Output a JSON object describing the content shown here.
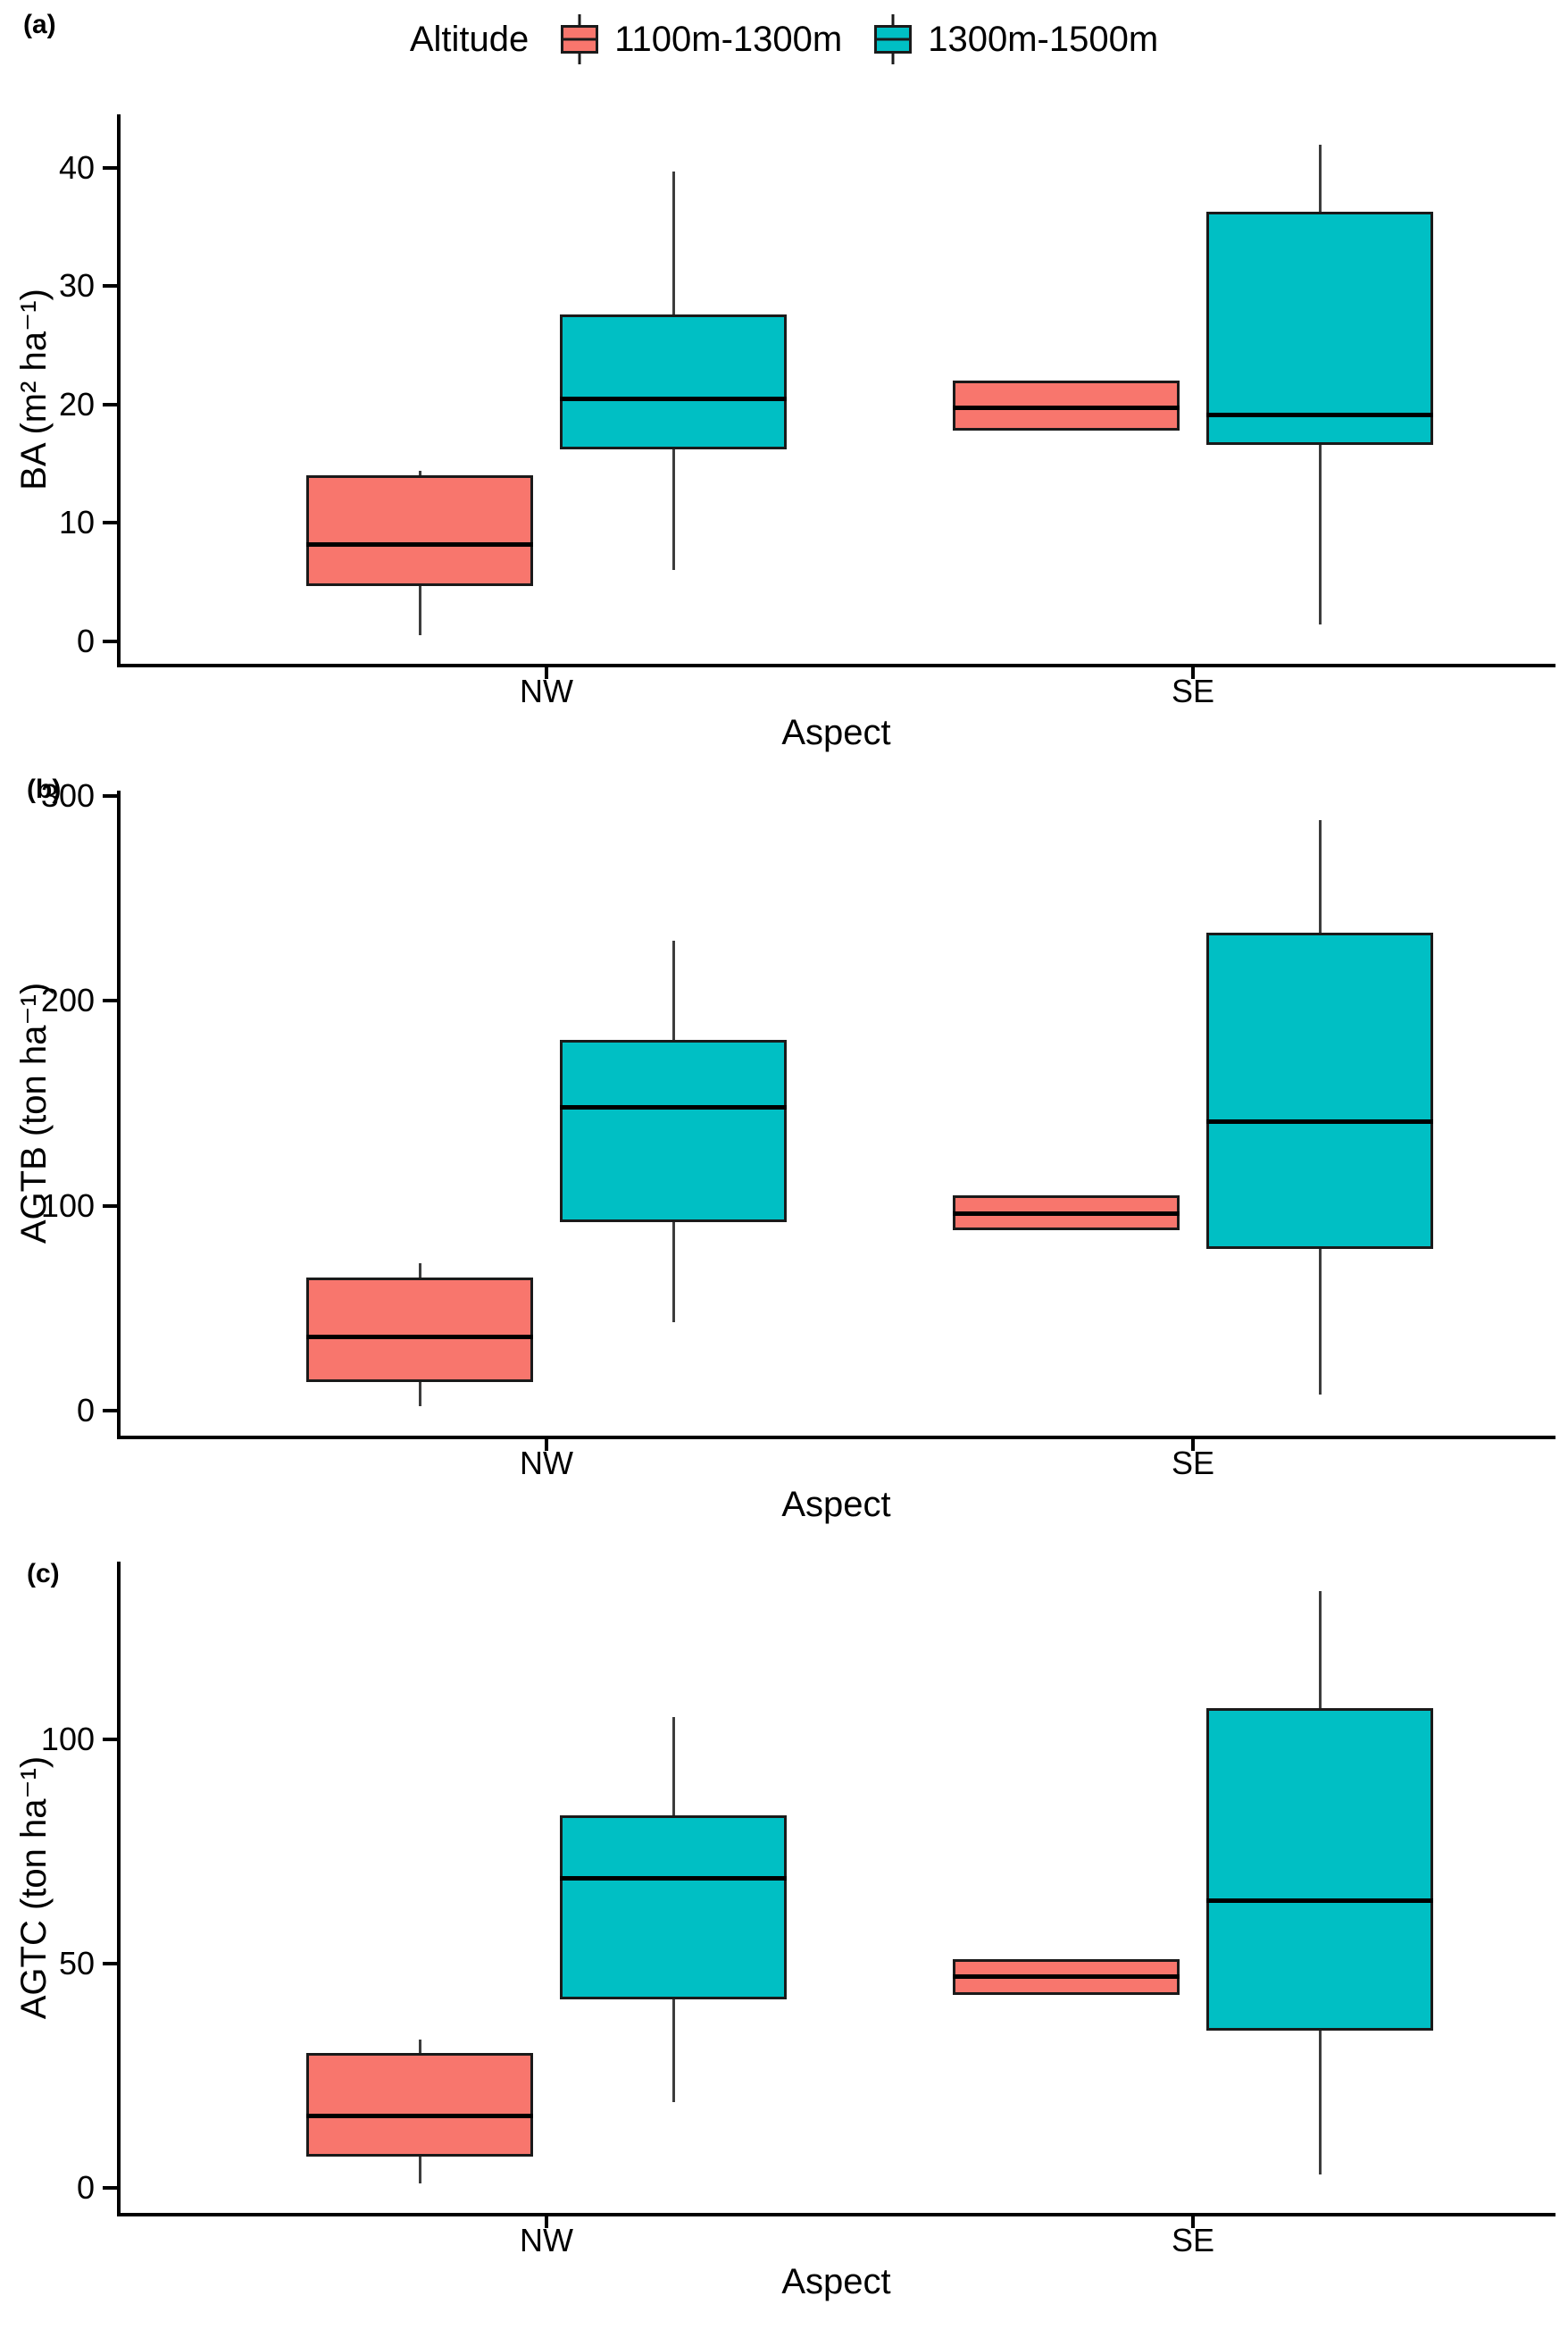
{
  "legend": {
    "title": "Altitude",
    "items": [
      {
        "label": "1100m-1300m",
        "color": "#F8766D"
      },
      {
        "label": "1300m-1500m",
        "color": "#00BFC4"
      }
    ]
  },
  "chart_data": [
    {
      "type": "boxplot",
      "panel_label": "(a)",
      "xlabel": "Aspect",
      "ylabel": "BA (m² ha⁻¹)",
      "categories": [
        "NW",
        "SE"
      ],
      "yticks": [
        0,
        10,
        20,
        30,
        40
      ],
      "ylim": [
        -1.9,
        44.5
      ],
      "legend_position": "top-center",
      "grid": false,
      "series": [
        {
          "name": "1100m-1300m",
          "color": "#F8766D",
          "boxes": [
            {
              "category": "NW",
              "whisker_low": 0.5,
              "q1": 4.7,
              "median": 8.2,
              "q3": 14.0,
              "whisker_high": 14.4
            },
            {
              "category": "SE",
              "whisker_low": 17.8,
              "q1": 17.8,
              "median": 19.7,
              "q3": 22.0,
              "whisker_high": 22.0
            }
          ]
        },
        {
          "name": "1300m-1500m",
          "color": "#00BFC4",
          "boxes": [
            {
              "category": "NW",
              "whisker_low": 6.0,
              "q1": 16.2,
              "median": 20.5,
              "q3": 27.6,
              "whisker_high": 39.7
            },
            {
              "category": "SE",
              "whisker_low": 1.4,
              "q1": 16.6,
              "median": 19.1,
              "q3": 36.3,
              "whisker_high": 41.9
            }
          ]
        }
      ]
    },
    {
      "type": "boxplot",
      "panel_label": "(b)",
      "xlabel": "Aspect",
      "ylabel": "AGTB (ton ha⁻¹)",
      "categories": [
        "NW",
        "SE"
      ],
      "yticks": [
        0,
        100,
        200,
        300
      ],
      "ylim": [
        -12.2,
        302.4
      ],
      "grid": false,
      "series": [
        {
          "name": "1100m-1300m",
          "color": "#F8766D",
          "boxes": [
            {
              "category": "NW",
              "whisker_low": 2,
              "q1": 14,
              "median": 36,
              "q3": 65,
              "whisker_high": 72
            },
            {
              "category": "SE",
              "whisker_low": 88,
              "q1": 88,
              "median": 96,
              "q3": 105,
              "whisker_high": 105
            }
          ]
        },
        {
          "name": "1300m-1500m",
          "color": "#00BFC4",
          "boxes": [
            {
              "category": "NW",
              "whisker_low": 43,
              "q1": 92,
              "median": 148,
              "q3": 181,
              "whisker_high": 229
            },
            {
              "category": "SE",
              "whisker_low": 8,
              "q1": 79,
              "median": 141,
              "q3": 233,
              "whisker_high": 288
            }
          ]
        }
      ]
    },
    {
      "type": "boxplot",
      "panel_label": "(c)",
      "xlabel": "Aspect",
      "ylabel": "AGTC (ton ha⁻¹)",
      "categories": [
        "NW",
        "SE"
      ],
      "yticks": [
        0,
        50,
        100
      ],
      "ylim": [
        -5.6,
        139.6
      ],
      "grid": false,
      "series": [
        {
          "name": "1100m-1300m",
          "color": "#F8766D",
          "boxes": [
            {
              "category": "NW",
              "whisker_low": 1,
              "q1": 7,
              "median": 16,
              "q3": 30,
              "whisker_high": 33
            },
            {
              "category": "SE",
              "whisker_low": 43,
              "q1": 43,
              "median": 47,
              "q3": 51,
              "whisker_high": 51
            }
          ]
        },
        {
          "name": "1300m-1500m",
          "color": "#00BFC4",
          "boxes": [
            {
              "category": "NW",
              "whisker_low": 19,
              "q1": 42,
              "median": 69,
              "q3": 83,
              "whisker_high": 105
            },
            {
              "category": "SE",
              "whisker_low": 3,
              "q1": 35,
              "median": 64,
              "q3": 107,
              "whisker_high": 133
            }
          ]
        }
      ]
    }
  ]
}
